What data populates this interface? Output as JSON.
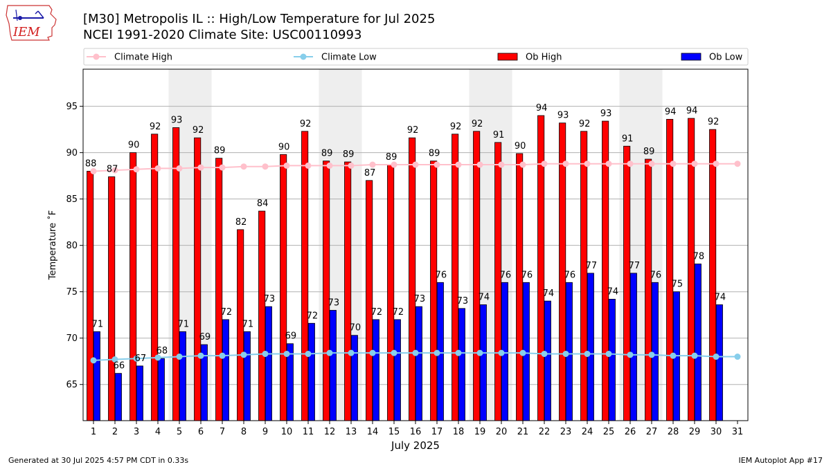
{
  "logo": {
    "text": "IEM"
  },
  "title_line1": "[M30] Metropolis  IL :: High/Low Temperature for Jul 2025",
  "title_line2": "NCEI 1991-2020 Climate Site: USC00110993",
  "footer": {
    "left": "Generated at 30 Jul 2025 4:57 PM CDT in 0.33s",
    "right": "IEM Autoplot App #17"
  },
  "colors": {
    "ob_high": "#ff0000",
    "ob_low": "#0000ff",
    "climate_high": "#ffc0cb",
    "climate_low": "#87ceeb",
    "weekend_band": "#eeeeee",
    "grid": "#b0b0b0"
  },
  "chart_data": {
    "type": "bar",
    "xlabel": "July 2025",
    "ylabel": "Temperature ˚F",
    "ylim": [
      61.1,
      99.0
    ],
    "yticks": [
      65,
      70,
      75,
      80,
      85,
      90,
      95
    ],
    "grid": "horizontal",
    "legend_position": "top",
    "categories": [
      1,
      2,
      3,
      4,
      5,
      6,
      7,
      8,
      9,
      10,
      11,
      12,
      13,
      14,
      15,
      16,
      17,
      18,
      19,
      20,
      21,
      22,
      23,
      24,
      25,
      26,
      27,
      28,
      29,
      30,
      31
    ],
    "weekend_days": [
      5,
      6,
      12,
      13,
      19,
      20,
      26,
      27
    ],
    "series": [
      {
        "name": "Ob High",
        "kind": "bar",
        "values": [
          88,
          87.4,
          90,
          92,
          92.7,
          91.6,
          89.4,
          81.7,
          83.7,
          89.8,
          92.3,
          89.1,
          89,
          87,
          88.7,
          91.6,
          89.1,
          92,
          92.3,
          91.1,
          89.9,
          94,
          93.2,
          92.3,
          93.4,
          90.7,
          89.3,
          93.6,
          93.7,
          92.5,
          null
        ],
        "labels": [
          "88",
          "87",
          "90",
          "92",
          "93",
          "92",
          "89",
          "82",
          "84",
          "90",
          "92",
          "89",
          "89",
          "87",
          "89",
          "92",
          "89",
          "92",
          "92",
          "91",
          "90",
          "94",
          "93",
          "92",
          "93",
          "91",
          "89",
          "94",
          "94",
          "92",
          ""
        ]
      },
      {
        "name": "Ob Low",
        "kind": "bar",
        "values": [
          70.7,
          66.2,
          67,
          67.8,
          70.7,
          69.3,
          72,
          70.7,
          73.4,
          69.4,
          71.6,
          73,
          70.3,
          72,
          72,
          73.4,
          76,
          73.2,
          73.6,
          76,
          76,
          74,
          76,
          77,
          74.2,
          77,
          76,
          75,
          78,
          73.6,
          null
        ],
        "labels": [
          "71",
          "66",
          "67",
          "68",
          "71",
          "69",
          "72",
          "71",
          "73",
          "69",
          "72",
          "73",
          "70",
          "72",
          "72",
          "73",
          "76",
          "73",
          "74",
          "76",
          "76",
          "74",
          "76",
          "77",
          "74",
          "77",
          "76",
          "75",
          "78",
          "74",
          ""
        ]
      },
      {
        "name": "Climate High",
        "kind": "line",
        "values": [
          88.0,
          88.1,
          88.2,
          88.3,
          88.3,
          88.4,
          88.4,
          88.5,
          88.5,
          88.6,
          88.6,
          88.6,
          88.6,
          88.7,
          88.7,
          88.7,
          88.7,
          88.7,
          88.7,
          88.7,
          88.7,
          88.8,
          88.8,
          88.8,
          88.8,
          88.8,
          88.8,
          88.8,
          88.8,
          88.8,
          88.8
        ]
      },
      {
        "name": "Climate Low",
        "kind": "line",
        "values": [
          67.6,
          67.7,
          67.8,
          67.9,
          68.0,
          68.1,
          68.1,
          68.2,
          68.3,
          68.3,
          68.3,
          68.4,
          68.4,
          68.4,
          68.4,
          68.4,
          68.4,
          68.4,
          68.4,
          68.4,
          68.4,
          68.3,
          68.3,
          68.3,
          68.3,
          68.2,
          68.2,
          68.1,
          68.1,
          68.0,
          68.0
        ]
      }
    ]
  }
}
